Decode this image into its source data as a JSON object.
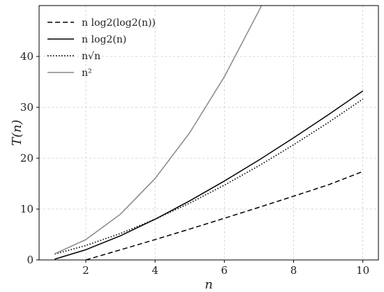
{
  "chart_data": {
    "type": "line",
    "xlabel": "n",
    "ylabel": "T(n)",
    "xlim": [
      0.65,
      10.45
    ],
    "ylim": [
      0,
      50
    ],
    "xticks": [
      2,
      4,
      6,
      8,
      10
    ],
    "yticks": [
      0,
      10,
      20,
      30,
      40
    ],
    "grid": true,
    "legend_position": "top-left",
    "series": [
      {
        "name": "n log2(log2(n))",
        "style": "dashed",
        "color": "#000000",
        "x": [
          2,
          3,
          4,
          5,
          6,
          7,
          8,
          9,
          10
        ],
        "y": [
          0.0,
          1.99,
          4.0,
          6.07,
          8.19,
          10.34,
          12.53,
          14.75,
          17.39
        ]
      },
      {
        "name": "n log2(n)",
        "style": "solid",
        "color": "#000000",
        "x": [
          1.1,
          2,
          3,
          4,
          5,
          6,
          7,
          8,
          9,
          10
        ],
        "y": [
          0.15,
          2.0,
          4.75,
          8.0,
          11.61,
          15.51,
          19.65,
          24.0,
          28.53,
          33.22
        ]
      },
      {
        "name": "n√n",
        "style": "dotted",
        "color": "#000000",
        "x": [
          1.1,
          2,
          3,
          4,
          5,
          6,
          7,
          8,
          9,
          10
        ],
        "y": [
          1.15,
          2.83,
          5.2,
          8.0,
          11.18,
          14.7,
          18.52,
          22.63,
          27.0,
          31.62
        ]
      },
      {
        "name": "n²",
        "style": "solid",
        "color": "#888888",
        "x": [
          1.1,
          2,
          3,
          4,
          5,
          6,
          7,
          7.07
        ],
        "y": [
          1.21,
          4.0,
          9.0,
          16.0,
          25.0,
          36.0,
          49.0,
          50.0
        ]
      }
    ]
  }
}
